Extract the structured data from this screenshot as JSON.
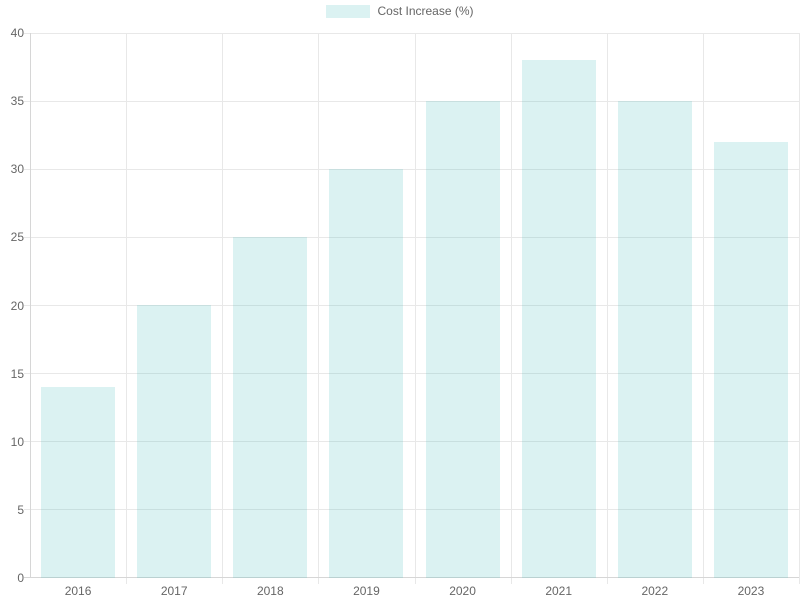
{
  "chart_data": {
    "type": "bar",
    "title": "",
    "legend": {
      "label": "Cost Increase (%)",
      "position": "top"
    },
    "categories": [
      "2016",
      "2017",
      "2018",
      "2019",
      "2020",
      "2021",
      "2022",
      "2023"
    ],
    "series": [
      {
        "name": "Cost Increase (%)",
        "values": [
          14,
          20,
          25,
          30,
          35,
          38,
          35,
          32
        ]
      }
    ],
    "xlabel": "",
    "ylabel": "",
    "ylim": [
      0,
      40
    ],
    "yticks": [
      0,
      5,
      10,
      15,
      20,
      25,
      30,
      35,
      40
    ],
    "grid": true,
    "colors": {
      "bar_fill": "rgba(75, 192, 192, 0.2)",
      "grid_line": "#e8e8e8",
      "axis_line": "#d6d6d6",
      "tick_text": "#666666"
    }
  }
}
